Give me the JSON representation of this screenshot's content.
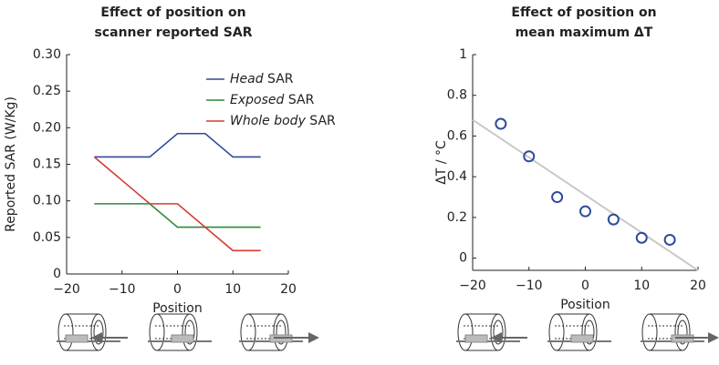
{
  "chart_data": [
    {
      "type": "line",
      "title": [
        "Effect of position on",
        "scanner reported SAR"
      ],
      "x_label": "Position",
      "y_label": "Reported SAR (W/Kg)",
      "x": [
        -15,
        -10,
        -5,
        0,
        5,
        10,
        15
      ],
      "series": [
        {
          "name": "Head SAR",
          "color": "#2e4a9a",
          "values": [
            0.16,
            0.16,
            0.16,
            0.192,
            0.192,
            0.16,
            0.16
          ]
        },
        {
          "name": "Exposed SAR",
          "color": "#2a8a3a",
          "values": [
            0.096,
            0.096,
            0.096,
            0.064,
            0.064,
            0.064,
            0.064
          ]
        },
        {
          "name": "Whole body SAR",
          "color": "#d63a32",
          "values": [
            0.16,
            0.128,
            0.096,
            0.096,
            0.064,
            0.032,
            0.032
          ]
        }
      ],
      "xlim": [
        -20,
        20
      ],
      "xticks": [
        {
          "value": -20,
          "label": "−20"
        },
        {
          "value": -10,
          "label": "−10"
        },
        0,
        10,
        20
      ],
      "ylim": [
        0,
        0.3
      ],
      "yticks": [
        0,
        0.05,
        {
          "value": 0.1,
          "label": "0.10"
        },
        0.15,
        {
          "value": 0.2,
          "label": "0.20"
        },
        0.25,
        {
          "value": 0.3,
          "label": "0.30"
        }
      ],
      "legend": "upper right"
    },
    {
      "type": "scatter",
      "title": [
        "Effect of position on",
        "mean maximum ΔT"
      ],
      "x_label": "Position",
      "y_label": "ΔT / °C",
      "x": [
        -15,
        -10,
        -5,
        0,
        5,
        10,
        15
      ],
      "values": [
        0.66,
        0.5,
        0.3,
        0.23,
        0.19,
        0.1,
        0.09
      ],
      "color": "#2e4a9a",
      "fit_line": {
        "x": [
          -20,
          20
        ],
        "values": [
          0.68,
          -0.06
        ],
        "color": "#c8c8c8"
      },
      "xlim": [
        -20,
        20
      ],
      "xticks": [
        {
          "value": -20,
          "label": "−20"
        },
        {
          "value": -10,
          "label": "−10"
        },
        0,
        10,
        20
      ],
      "ylim": [
        -0.06,
        1
      ],
      "yticks": [
        0,
        0.2,
        0.4,
        0.6,
        0.8,
        1
      ]
    }
  ]
}
